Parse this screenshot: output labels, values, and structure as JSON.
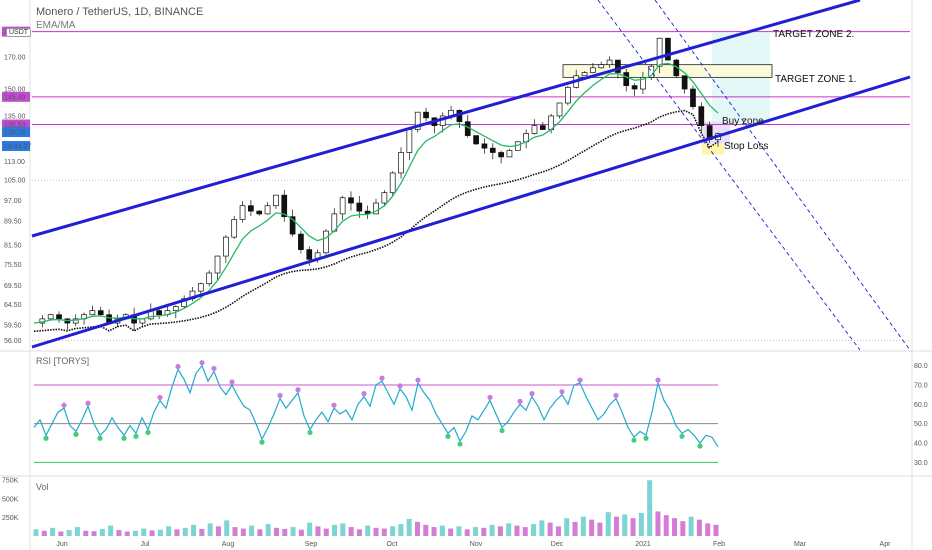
{
  "header": {
    "symbol_title": "Monero / TetherUS, 1D, BINANCE",
    "indicator_label": "EMA/MA",
    "currency_badge": "USDT"
  },
  "colors": {
    "channel": "#1f1fd6",
    "target_line": "#cc33cc",
    "ema": "#22bb66",
    "ma200": "#111111",
    "rsi_line": "#22aacc",
    "rsi_upper": "#cc55cc",
    "rsi_lower": "#33cc66",
    "up_volume": "#66cccc",
    "down_volume": "#cc66cc",
    "badge_purple": "#c04cd0",
    "badge_blue": "#2a7ae2"
  },
  "chart_data": [
    {
      "type": "line",
      "pane": "price",
      "title": "",
      "y_ticks": [
        "187.78",
        "170.00",
        "150.00",
        "145.49",
        "135.00",
        "130.53",
        "126.75",
        "19:44:27",
        "113.00",
        "105.00",
        "97.00",
        "89.50",
        "81.50",
        "75.50",
        "69.50",
        "64.50",
        "59.50",
        "56.00"
      ],
      "x_ticks": [
        "Jun",
        "Jul",
        "Aug",
        "Sep",
        "Oct",
        "Nov",
        "Dec",
        "2021",
        "Feb",
        "Mar",
        "Apr"
      ],
      "series": [
        {
          "values": [
            60,
            61,
            62,
            61,
            60,
            61,
            62,
            63,
            62,
            60,
            61,
            62,
            60,
            61,
            63,
            62,
            63,
            64,
            66,
            68,
            70,
            73,
            78,
            84,
            90,
            95,
            93,
            92,
            95,
            99,
            91,
            85,
            80,
            77,
            79,
            86,
            92,
            98,
            96,
            93,
            92,
            96,
            100,
            108,
            117,
            128,
            137,
            134,
            130,
            135,
            138,
            132,
            125,
            121,
            119,
            117,
            115,
            118,
            122,
            126,
            130,
            128,
            135,
            142,
            151,
            158,
            160,
            163,
            165,
            168,
            160,
            152,
            150,
            157,
            164,
            183,
            168,
            158,
            150,
            140,
            130,
            123,
            126
          ]
        }
      ],
      "annotations": [
        "TARGET ZONE 2.",
        "TARGET ZONE 1.",
        "Buy zone",
        "Stop Loss"
      ],
      "price_levels": [
        187.78,
        145.49,
        130.53
      ]
    },
    {
      "type": "line",
      "pane": "rsi",
      "title": "RSI [TORYS]",
      "y_ticks": [
        "80.0",
        "70.0",
        "60.0",
        "50.0",
        "40.0",
        "30.0"
      ],
      "ylim": [
        25,
        85
      ],
      "bands": [
        70,
        50,
        30
      ],
      "series": [
        {
          "values": [
            48,
            52,
            44,
            50,
            56,
            58,
            49,
            46,
            52,
            59,
            50,
            44,
            47,
            53,
            48,
            44,
            49,
            45,
            53,
            47,
            56,
            62,
            58,
            69,
            78,
            73,
            66,
            76,
            80,
            72,
            77,
            69,
            65,
            70,
            64,
            59,
            57,
            50,
            42,
            48,
            55,
            63,
            58,
            62,
            66,
            54,
            47,
            52,
            56,
            51,
            58,
            55,
            57,
            52,
            60,
            64,
            59,
            70,
            72,
            66,
            60,
            68,
            64,
            57,
            71,
            66,
            62,
            55,
            50,
            45,
            48,
            41,
            46,
            54,
            52,
            57,
            62,
            55,
            48,
            51,
            56,
            60,
            57,
            64,
            59,
            52,
            58,
            62,
            65,
            60,
            70,
            71,
            64,
            58,
            52,
            55,
            60,
            63,
            56,
            48,
            43,
            46,
            44,
            56,
            71,
            62,
            57,
            49,
            45,
            47,
            44,
            40,
            44,
            43,
            38
          ]
        }
      ]
    },
    {
      "type": "bar",
      "pane": "volume",
      "title": "Vol",
      "y_ticks": [
        "750K",
        "500K",
        "250K"
      ],
      "ylim": [
        0,
        780000
      ],
      "values": [
        90000,
        70000,
        110000,
        60000,
        80000,
        120000,
        70000,
        65000,
        95000,
        140000,
        80000,
        60000,
        70000,
        100000,
        75000,
        85000,
        130000,
        90000,
        110000,
        150000,
        95000,
        170000,
        130000,
        210000,
        120000,
        100000,
        140000,
        90000,
        160000,
        110000,
        95000,
        120000,
        85000,
        180000,
        130000,
        100000,
        150000,
        170000,
        120000,
        90000,
        140000,
        110000,
        100000,
        130000,
        160000,
        230000,
        190000,
        150000,
        120000,
        140000,
        100000,
        130000,
        90000,
        120000,
        110000,
        150000,
        130000,
        170000,
        140000,
        120000,
        160000,
        210000,
        180000,
        130000,
        240000,
        190000,
        260000,
        220000,
        180000,
        320000,
        260000,
        290000,
        240000,
        310000,
        750000,
        330000,
        280000,
        240000,
        200000,
        260000,
        220000,
        170000,
        150000
      ]
    }
  ]
}
